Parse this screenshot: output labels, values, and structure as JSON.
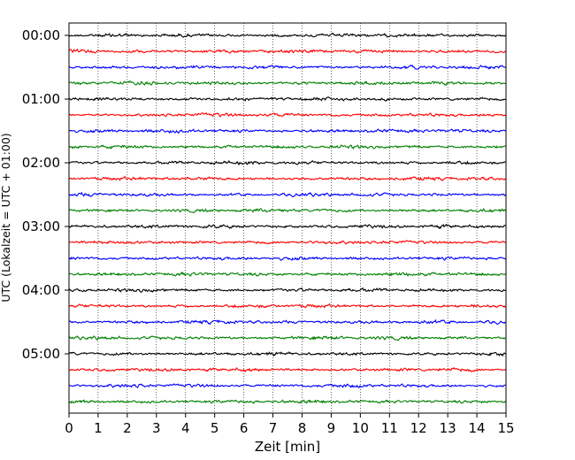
{
  "chart_data": {
    "type": "line",
    "title": "",
    "xlabel": "Zeit  [min]",
    "ylabel": "UTC (Lokalzeit = UTC + 01:00)",
    "xlim": [
      0,
      15
    ],
    "x_ticks": [
      "0",
      "1",
      "2",
      "3",
      "4",
      "5",
      "6",
      "7",
      "8",
      "9",
      "10",
      "11",
      "12",
      "13",
      "14",
      "15"
    ],
    "y_tick_labels": [
      "00:00",
      "01:00",
      "02:00",
      "03:00",
      "04:00",
      "05:00"
    ],
    "row_interval_minutes": 15,
    "row_count": 24,
    "row_start_times": [
      "00:00",
      "00:15",
      "00:30",
      "00:45",
      "01:00",
      "01:15",
      "01:30",
      "01:45",
      "02:00",
      "02:15",
      "02:30",
      "02:45",
      "03:00",
      "03:15",
      "03:30",
      "03:45",
      "04:00",
      "04:15",
      "04:30",
      "04:45",
      "05:00",
      "05:15",
      "05:30",
      "05:45"
    ],
    "trace_colors": [
      "#000000",
      "#ff0000",
      "#0000ff",
      "#008000"
    ],
    "grid": "vertical dotted lines at each minute",
    "signal": "continuous low-amplitude seismic noise, no distinct events"
  }
}
